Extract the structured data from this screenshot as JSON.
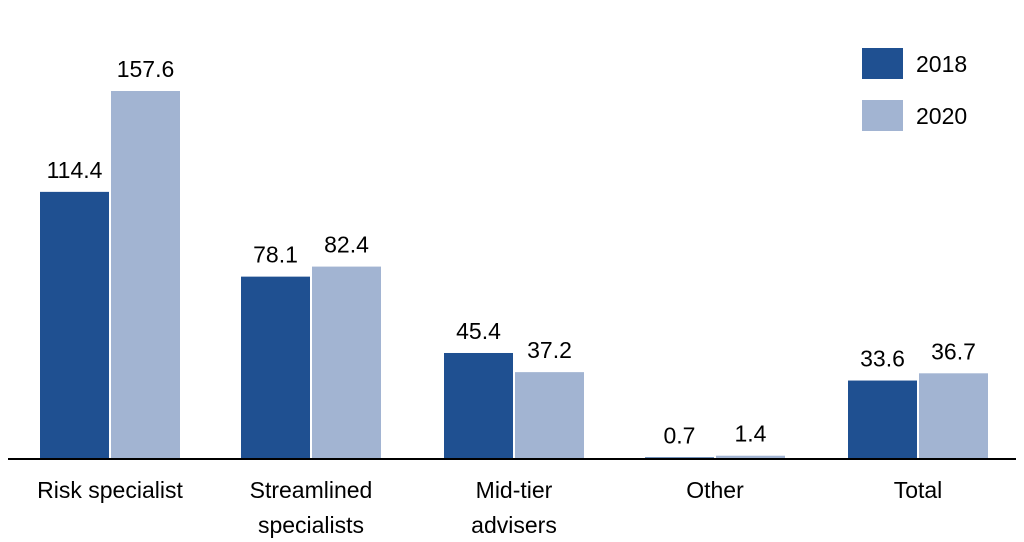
{
  "chart_data": {
    "type": "bar",
    "categories": [
      [
        "Risk specialist"
      ],
      [
        "Streamlined",
        "specialists"
      ],
      [
        "Mid-tier",
        "advisers"
      ],
      [
        "Other"
      ],
      [
        "Total"
      ]
    ],
    "series": [
      {
        "name": "2018",
        "color": "#1f5091",
        "values": [
          114.4,
          78.1,
          45.4,
          0.7,
          33.6
        ],
        "labels": [
          "114.4",
          "78.1",
          "45.4",
          "0.7",
          "33.6"
        ]
      },
      {
        "name": "2020",
        "color": "#a2b4d2",
        "values": [
          157.6,
          82.4,
          37.2,
          1.4,
          36.7
        ],
        "labels": [
          "157.6",
          "82.4",
          "37.2",
          "1.4",
          "36.7"
        ]
      }
    ],
    "legend": {
      "position": "top-right"
    },
    "ylim": [
      0,
      160
    ],
    "grid": false
  }
}
